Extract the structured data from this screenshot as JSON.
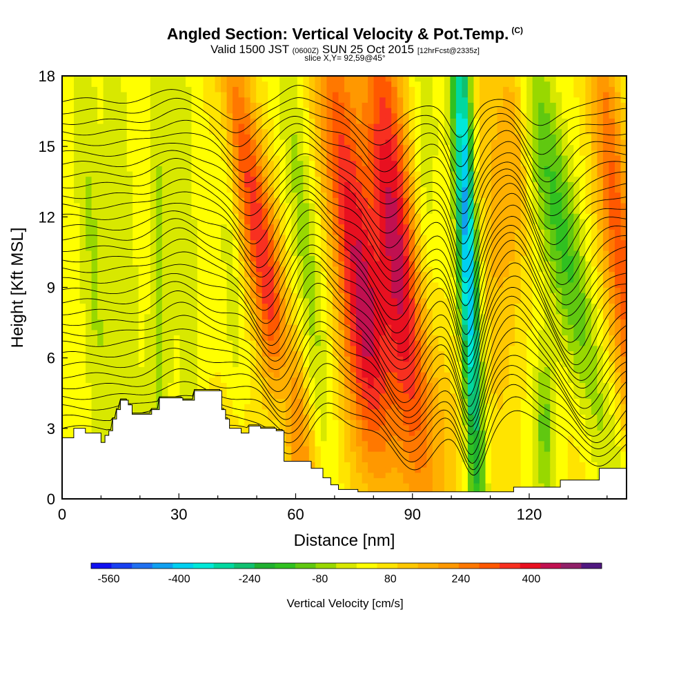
{
  "title": {
    "main": "Angled Section: Vertical Velocity & Pot.Temp.",
    "copyright": "(C)",
    "valid_prefix": "Valid 1500 JST",
    "valid_utc": "(0600Z)",
    "valid_date": "SUN 25 Oct 2015",
    "forecast": "[12hrFcst@2335z]",
    "slice": "slice X,Y= 92,59@45°"
  },
  "chart_data": {
    "type": "heatmap",
    "xlabel": "Distance [nm]",
    "ylabel": "Height [Kft MSL]",
    "xlim": [
      0,
      145
    ],
    "ylim": [
      0,
      18
    ],
    "xticks": [
      0,
      30,
      60,
      90,
      120
    ],
    "yticks": [
      0,
      3,
      6,
      9,
      12,
      15,
      18
    ],
    "colorbar": {
      "title": "Vertical Velocity [cm/s]",
      "ticks": [
        -560,
        -400,
        -240,
        -80,
        80,
        240,
        400
      ],
      "min": -600,
      "max": 560,
      "colors": [
        "#1010f0",
        "#1840f0",
        "#2070f0",
        "#10a0f0",
        "#00d0f0",
        "#00e8d8",
        "#00d8a0",
        "#10c070",
        "#20b030",
        "#30c020",
        "#60c810",
        "#98d800",
        "#d8e800",
        "#ffff00",
        "#ffe400",
        "#ffc800",
        "#ffb000",
        "#ff9800",
        "#ff7800",
        "#ff5800",
        "#f83020",
        "#e81020",
        "#c01050",
        "#902068",
        "#501880"
      ]
    },
    "terrain_profile": [
      [
        0,
        2.6
      ],
      [
        3,
        2.6
      ],
      [
        3,
        3.0
      ],
      [
        6,
        3.0
      ],
      [
        6,
        2.8
      ],
      [
        10,
        2.8
      ],
      [
        10,
        2.4
      ],
      [
        11,
        2.4
      ],
      [
        11,
        2.7
      ],
      [
        12,
        2.7
      ],
      [
        12,
        2.9
      ],
      [
        13,
        2.9
      ],
      [
        13,
        3.4
      ],
      [
        14,
        3.4
      ],
      [
        14,
        3.8
      ],
      [
        15,
        3.8
      ],
      [
        15,
        4.2
      ],
      [
        17,
        4.2
      ],
      [
        17,
        4.0
      ],
      [
        18,
        4.0
      ],
      [
        18,
        3.6
      ],
      [
        23,
        3.6
      ],
      [
        23,
        3.8
      ],
      [
        25,
        3.8
      ],
      [
        25,
        4.3
      ],
      [
        31,
        4.3
      ],
      [
        31,
        4.2
      ],
      [
        34,
        4.2
      ],
      [
        34,
        4.6
      ],
      [
        41,
        4.6
      ],
      [
        41,
        3.8
      ],
      [
        42,
        3.8
      ],
      [
        42,
        3.4
      ],
      [
        43,
        3.4
      ],
      [
        43,
        3.0
      ],
      [
        46,
        3.0
      ],
      [
        46,
        2.8
      ],
      [
        48,
        2.8
      ],
      [
        48,
        3.1
      ],
      [
        51,
        3.1
      ],
      [
        51,
        3.0
      ],
      [
        55,
        3.0
      ],
      [
        55,
        2.9
      ],
      [
        57,
        2.9
      ],
      [
        57,
        1.6
      ],
      [
        60,
        1.6
      ],
      [
        60,
        1.6
      ],
      [
        64,
        1.6
      ],
      [
        64,
        1.3
      ],
      [
        67,
        1.3
      ],
      [
        67,
        0.9
      ],
      [
        69,
        0.9
      ],
      [
        69,
        0.6
      ],
      [
        71,
        0.6
      ],
      [
        71,
        0.4
      ],
      [
        76,
        0.4
      ],
      [
        76,
        0.3
      ],
      [
        116,
        0.3
      ],
      [
        116,
        0.5
      ],
      [
        128,
        0.5
      ],
      [
        128,
        0.8
      ],
      [
        138,
        0.8
      ],
      [
        138,
        1.3
      ],
      [
        145,
        1.3
      ]
    ],
    "velocity_features": [
      {
        "x": 8,
        "z": 10,
        "sx": 2.5,
        "sz": 9,
        "tilt": -0.12,
        "w": -90
      },
      {
        "x": 16,
        "z": 9,
        "sx": 2.5,
        "sz": 10,
        "tilt": -0.1,
        "w": -80
      },
      {
        "x": 25,
        "z": 8,
        "sx": 2.0,
        "sz": 10,
        "tilt": 0,
        "w": -100
      },
      {
        "x": 32,
        "z": 9,
        "sx": 2.0,
        "sz": 10,
        "tilt": -0.05,
        "w": -80
      },
      {
        "x": 43,
        "z": 12,
        "sx": 2.0,
        "sz": 8,
        "tilt": -0.1,
        "w": -70
      },
      {
        "x": 52,
        "z": 10,
        "sx": 3.5,
        "sz": 8,
        "tilt": -0.35,
        "w": 330
      },
      {
        "x": 57,
        "z": 5,
        "sx": 2.0,
        "sz": 3,
        "tilt": 0,
        "w": -140
      },
      {
        "x": 63,
        "z": 10,
        "sx": 2.5,
        "sz": 8,
        "tilt": -0.2,
        "w": -110
      },
      {
        "x": 74,
        "z": 12,
        "sx": 4.0,
        "sz": 7,
        "tilt": -0.25,
        "w": 320
      },
      {
        "x": 78,
        "z": 6,
        "sx": 5.0,
        "sz": 4,
        "tilt": 0,
        "w": 150
      },
      {
        "x": 86,
        "z": 11,
        "sx": 4.0,
        "sz": 8,
        "tilt": -0.2,
        "w": 380
      },
      {
        "x": 93,
        "z": 14,
        "sx": 2.5,
        "sz": 6,
        "tilt": 0,
        "w": -80
      },
      {
        "x": 104,
        "z": 11,
        "sx": 1.8,
        "sz": 9,
        "tilt": -0.08,
        "w": -480
      },
      {
        "x": 110,
        "z": 12,
        "sx": 3.0,
        "sz": 7,
        "tilt": -0.1,
        "w": 90
      },
      {
        "x": 116,
        "z": 16,
        "sx": 3.0,
        "sz": 5,
        "tilt": 0,
        "w": 160
      },
      {
        "x": 130,
        "z": 10,
        "sx": 4.0,
        "sz": 9,
        "tilt": -0.4,
        "w": -200
      },
      {
        "x": 124,
        "z": 3,
        "sx": 2.0,
        "sz": 2.5,
        "tilt": 0,
        "w": -150
      },
      {
        "x": 143,
        "z": 11,
        "sx": 3.0,
        "sz": 9,
        "tilt": -0.2,
        "w": 250
      },
      {
        "x": 137,
        "z": 5,
        "sx": 5.0,
        "sz": 5,
        "tilt": 0,
        "w": 70
      },
      {
        "x": 44,
        "z": 2,
        "sx": 6,
        "sz": 2,
        "tilt": 0,
        "w": 60
      },
      {
        "x": 100,
        "z": 3,
        "sx": 6,
        "sz": 3,
        "tilt": 0,
        "w": 60
      }
    ],
    "theta_contours": {
      "count": 32,
      "base_height": 3.0,
      "spacing": 0.45,
      "waves": [
        {
          "x": 52,
          "sx": 4,
          "amp": -1.8,
          "tilt": -0.35
        },
        {
          "x": 86,
          "sx": 5,
          "amp": -2.6,
          "tilt": -0.2
        },
        {
          "x": 104,
          "sx": 3,
          "amp": -3.2,
          "tilt": -0.08
        },
        {
          "x": 130,
          "sx": 5,
          "amp": -2.6,
          "tilt": -0.4
        },
        {
          "x": 64,
          "sx": 4,
          "amp": 1.2,
          "tilt": -0.2
        },
        {
          "x": 116,
          "sx": 4,
          "amp": 1.2,
          "tilt": 0
        },
        {
          "x": 30,
          "sx": 5,
          "amp": 0.8,
          "tilt": 0
        }
      ]
    }
  }
}
